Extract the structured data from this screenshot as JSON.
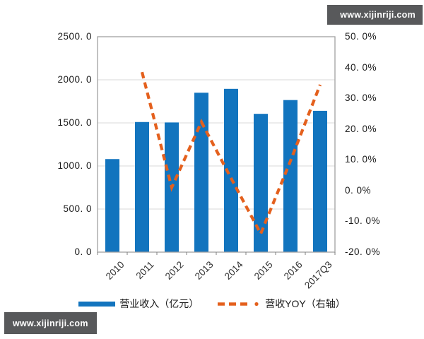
{
  "watermark": {
    "text": "www.xijinriji.com"
  },
  "colors": {
    "bar": "#1274BE",
    "line": "#E4601D",
    "grid": "#D9D9D9",
    "frame": "#A0A0A0",
    "tick": "#808080",
    "watermark_bg": "#58595B",
    "watermark_fg": "#FFFFFF"
  },
  "chart_data": {
    "type": "bar",
    "subtype": "bar+dashed-line, dual axis",
    "categories": [
      "2010",
      "2011",
      "2012",
      "2013",
      "2014",
      "2015",
      "2016",
      "2017Q3"
    ],
    "series": [
      {
        "name": "营业收入（亿元）",
        "type": "bar",
        "axis": "left",
        "values": [
          1080,
          1510,
          1505,
          1850,
          1895,
          1605,
          1765,
          1640
        ]
      },
      {
        "name": "营收YOY（右轴）",
        "type": "line",
        "line_style": "dashed",
        "axis": "right",
        "values": [
          null,
          38.5,
          1.0,
          22.3,
          4.0,
          -14.0,
          9.6,
          34.4
        ]
      }
    ],
    "title": "",
    "xlabel": "",
    "ylabel": "",
    "left_axis": {
      "min": 0,
      "max": 2500,
      "step": 500,
      "tick_labels": [
        "2500. 0",
        "2000. 0",
        "1500. 0",
        "1000. 0",
        "500. 0",
        "0. 0"
      ]
    },
    "right_axis": {
      "min": -20,
      "max": 50,
      "step": 10,
      "tick_labels": [
        "50. 0%",
        "40. 0%",
        "30. 0%",
        "20. 0%",
        "10. 0%",
        "0. 0%",
        "-10. 0%",
        "-20. 0%"
      ]
    },
    "grid": true,
    "legend_position": "bottom"
  },
  "legend": {
    "items": [
      {
        "label": "营业收入（亿元）",
        "marker": "bar-swatch"
      },
      {
        "label": "营收YOY（右轴）",
        "marker": "dashed-line"
      }
    ]
  }
}
